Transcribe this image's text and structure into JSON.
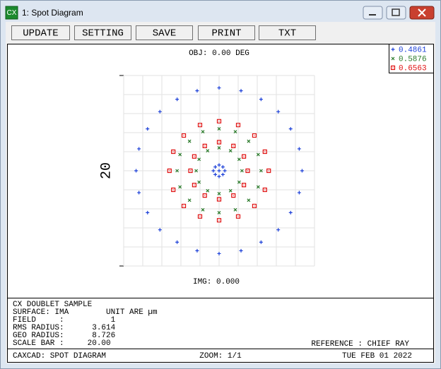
{
  "window": {
    "title": "1: Spot Diagram",
    "icon": "CX"
  },
  "toolbar": [
    "UPDATE",
    "SETTING",
    "SAVE",
    "PRINT",
    "TXT"
  ],
  "chart_data": {
    "type": "scatter",
    "title": "OBJ: 0.00 DEG",
    "x_label": "IMG: 0.000",
    "scale_bar_label": "20",
    "xlim": [
      -10,
      10
    ],
    "ylim": [
      -10,
      10
    ],
    "xticks": [
      -10,
      -8,
      -6,
      -4,
      -2,
      0,
      2,
      4,
      6,
      8,
      10
    ],
    "yticks": [
      -10,
      -8,
      -6,
      -4,
      -2,
      0,
      2,
      4,
      6,
      8,
      10
    ],
    "grid": true,
    "legend": "top-right",
    "series": [
      {
        "name": "0.4861",
        "color": "#1b3fd8",
        "marker": "plus",
        "x": [
          8.7,
          8.4,
          7.5,
          6.2,
          4.4,
          2.3,
          0,
          -2.3,
          -4.4,
          -6.2,
          -7.5,
          -8.4,
          -8.7,
          -8.4,
          -7.5,
          -6.2,
          -4.4,
          -2.3,
          0,
          2.3,
          4.4,
          6.2,
          7.5,
          8.4,
          0.6,
          0.4,
          0,
          -0.4,
          -0.6,
          -0.4,
          0,
          0.4,
          0
        ],
        "y": [
          0,
          2.3,
          4.4,
          6.2,
          7.5,
          8.4,
          8.7,
          8.4,
          7.5,
          6.2,
          4.4,
          2.3,
          0,
          -2.3,
          -4.4,
          -6.2,
          -7.5,
          -8.4,
          -8.7,
          -8.4,
          -7.5,
          -6.2,
          -4.4,
          -2.3,
          0,
          0.4,
          0.6,
          0.4,
          0,
          -0.4,
          -0.6,
          -0.4,
          0
        ]
      },
      {
        "name": "0.5876",
        "color": "#2a7a2a",
        "marker": "cross",
        "x": [
          4.4,
          4.1,
          3.1,
          1.7,
          0,
          -1.7,
          -3.1,
          -4.1,
          -4.4,
          -4.1,
          -3.1,
          -1.7,
          0,
          1.7,
          3.1,
          4.1,
          2.4,
          2.1,
          1.2,
          0,
          -1.2,
          -2.1,
          -2.4,
          -2.1,
          -1.2,
          0,
          1.2,
          2.1
        ],
        "y": [
          0,
          1.7,
          3.1,
          4.1,
          4.4,
          4.1,
          3.1,
          1.7,
          0,
          -1.7,
          -3.1,
          -4.1,
          -4.4,
          -4.1,
          -3.1,
          -1.7,
          0,
          1.2,
          2.1,
          2.4,
          2.1,
          1.2,
          0,
          -1.2,
          -2.1,
          -2.4,
          -2.1,
          -1.2
        ]
      },
      {
        "name": "0.6563",
        "color": "#e01010",
        "marker": "square",
        "x": [
          5.2,
          4.8,
          3.7,
          2.0,
          0,
          -2.0,
          -3.7,
          -4.8,
          -5.2,
          -4.8,
          -3.7,
          -2.0,
          0,
          2.0,
          3.7,
          4.8,
          3.0,
          2.6,
          1.5,
          0,
          -1.5,
          -2.6,
          -3.0,
          -2.6,
          -1.5,
          0,
          1.5,
          2.6
        ],
        "y": [
          0,
          2.0,
          3.7,
          4.8,
          5.2,
          4.8,
          3.7,
          2.0,
          0,
          -2.0,
          -3.7,
          -4.8,
          -5.2,
          -4.8,
          -3.7,
          -2.0,
          0,
          1.5,
          2.6,
          3.0,
          2.6,
          1.5,
          0,
          -1.5,
          -2.6,
          -3.0,
          -2.6,
          -1.5
        ]
      }
    ]
  },
  "info": [
    "CX DOUBLET SAMPLE",
    "SURFACE: IMA        UNIT ARE µm",
    "FIELD     :          1",
    "RMS RADIUS:      3.614",
    "GEO RADIUS:      8.726",
    "SCALE BAR :     20.00"
  ],
  "reference": "REFERENCE : CHIEF RAY",
  "footer": [
    "CAXCAD: SPOT DIAGRAM",
    "ZOOM: 1/1",
    "TUE FEB 01 2022"
  ]
}
